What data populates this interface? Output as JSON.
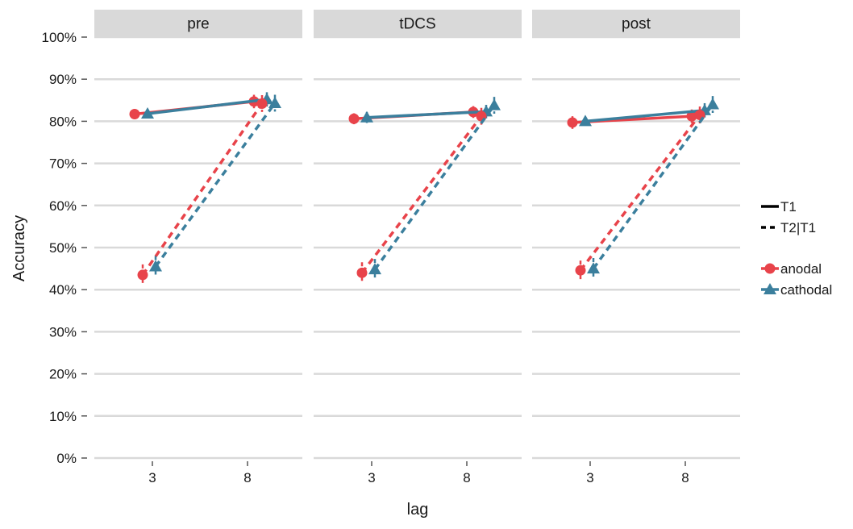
{
  "chart_data": {
    "type": "line",
    "xlabel": "lag",
    "ylabel": "Accuracy",
    "ylim": [
      0,
      100
    ],
    "yticks": [
      "0%",
      "10%",
      "20%",
      "30%",
      "40%",
      "50%",
      "60%",
      "70%",
      "80%",
      "90%",
      "100%"
    ],
    "x_categories": [
      "3",
      "8"
    ],
    "panels": [
      "pre",
      "tDCS",
      "post"
    ],
    "legend_linetype": [
      {
        "label": "T1",
        "style": "solid"
      },
      {
        "label": "T2|T1",
        "style": "dashed"
      }
    ],
    "legend_group": [
      {
        "label": "anodal",
        "color": "#e8434a",
        "shape": "circle"
      },
      {
        "label": "cathodal",
        "color": "#3b7f9d",
        "shape": "triangle"
      }
    ],
    "series": [
      {
        "panel": "pre",
        "measure": "T1",
        "group": "anodal",
        "points": [
          {
            "lag": "3",
            "y": 81.7,
            "err": 1.2
          },
          {
            "lag": "8",
            "y": 84.7,
            "err": 1.6
          }
        ]
      },
      {
        "panel": "pre",
        "measure": "T1",
        "group": "cathodal",
        "points": [
          {
            "lag": "3",
            "y": 81.8,
            "err": 1.0
          },
          {
            "lag": "8",
            "y": 85.2,
            "err": 1.7
          }
        ]
      },
      {
        "panel": "pre",
        "measure": "T2|T1",
        "group": "anodal",
        "points": [
          {
            "lag": "3",
            "y": 43.5,
            "err": 2.5
          },
          {
            "lag": "8",
            "y": 84.2,
            "err": 2.0
          }
        ]
      },
      {
        "panel": "pre",
        "measure": "T2|T1",
        "group": "cathodal",
        "points": [
          {
            "lag": "3",
            "y": 45.5,
            "err": 2.5
          },
          {
            "lag": "8",
            "y": 84.3,
            "err": 2.0
          }
        ]
      },
      {
        "panel": "tDCS",
        "measure": "T1",
        "group": "anodal",
        "points": [
          {
            "lag": "3",
            "y": 80.6,
            "err": 1.3
          },
          {
            "lag": "8",
            "y": 82.2,
            "err": 1.4
          }
        ]
      },
      {
        "panel": "tDCS",
        "measure": "T1",
        "group": "cathodal",
        "points": [
          {
            "lag": "3",
            "y": 80.9,
            "err": 1.3
          },
          {
            "lag": "8",
            "y": 82.3,
            "err": 1.6
          }
        ]
      },
      {
        "panel": "tDCS",
        "measure": "T2|T1",
        "group": "anodal",
        "points": [
          {
            "lag": "3",
            "y": 44.0,
            "err": 2.5
          },
          {
            "lag": "8",
            "y": 81.2,
            "err": 2.0
          }
        ]
      },
      {
        "panel": "tDCS",
        "measure": "T2|T1",
        "group": "cathodal",
        "points": [
          {
            "lag": "3",
            "y": 44.8,
            "err": 2.5
          },
          {
            "lag": "8",
            "y": 83.8,
            "err": 2.0
          }
        ]
      },
      {
        "panel": "post",
        "measure": "T1",
        "group": "anodal",
        "points": [
          {
            "lag": "3",
            "y": 79.7,
            "err": 1.5
          },
          {
            "lag": "8",
            "y": 81.2,
            "err": 1.6
          }
        ]
      },
      {
        "panel": "post",
        "measure": "T1",
        "group": "cathodal",
        "points": [
          {
            "lag": "3",
            "y": 80.0,
            "err": 1.0
          },
          {
            "lag": "8",
            "y": 82.6,
            "err": 1.7
          }
        ]
      },
      {
        "panel": "post",
        "measure": "T2|T1",
        "group": "anodal",
        "points": [
          {
            "lag": "3",
            "y": 44.6,
            "err": 2.3
          },
          {
            "lag": "8",
            "y": 81.5,
            "err": 2.0
          }
        ]
      },
      {
        "panel": "post",
        "measure": "T2|T1",
        "group": "cathodal",
        "points": [
          {
            "lag": "3",
            "y": 45.0,
            "err": 2.5
          },
          {
            "lag": "8",
            "y": 84.0,
            "err": 2.0
          }
        ]
      }
    ]
  }
}
